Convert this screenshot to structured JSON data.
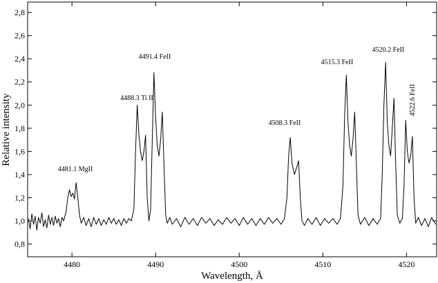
{
  "chart_data": {
    "type": "line",
    "xlabel": "Wavelength, Å",
    "ylabel": "Relative intensity",
    "color": "#000000",
    "xlim": [
      4474.7,
      4523.6
    ],
    "xticks": [
      4480,
      4490,
      4500,
      4510,
      4520
    ],
    "ylim": [
      0.69,
      2.89
    ],
    "yticks": [
      {
        "value": 0.8,
        "label": "0,8"
      },
      {
        "value": 1.0,
        "label": "1,0"
      },
      {
        "value": 1.2,
        "label": "1,2"
      },
      {
        "value": 1.4,
        "label": "1,4"
      },
      {
        "value": 1.6,
        "label": "1,6"
      },
      {
        "value": 1.8,
        "label": "1,8"
      },
      {
        "value": 2.0,
        "label": "2,0"
      },
      {
        "value": 2.2,
        "label": "2,2"
      },
      {
        "value": 2.4,
        "label": "2,4"
      },
      {
        "value": 2.6,
        "label": "2,6"
      },
      {
        "value": 2.8,
        "label": "2,8"
      }
    ],
    "annotations": [
      "4481.1 MgII",
      "4488.3 Ti II",
      "4491.4 FeII",
      "4508.3 FeII",
      "4515.3 FeII",
      "4520.2 FeII",
      "4522.6 FeII"
    ],
    "x": [
      4474.8,
      4475.0,
      4475.2,
      4475.4,
      4475.6,
      4475.8,
      4476.0,
      4476.2,
      4476.4,
      4476.6,
      4476.8,
      4477.0,
      4477.2,
      4477.4,
      4477.6,
      4477.8,
      4478.0,
      4478.2,
      4478.4,
      4478.6,
      4478.8,
      4479.0,
      4479.3,
      4479.5,
      4479.7,
      4479.9,
      4480.1,
      4480.3,
      4480.5,
      4480.7,
      4480.9,
      4481.1,
      4481.4,
      4481.7,
      4482.0,
      4482.3,
      4482.6,
      4482.9,
      4483.2,
      4483.5,
      4483.8,
      4484.1,
      4484.4,
      4484.7,
      4485.0,
      4485.3,
      4485.6,
      4485.9,
      4486.2,
      4486.5,
      4486.8,
      4487.1,
      4487.4,
      4487.6,
      4487.8,
      4488.0,
      4488.2,
      4488.4,
      4488.6,
      4488.8,
      4489.0,
      4489.2,
      4489.4,
      4489.6,
      4489.8,
      4490.0,
      4490.2,
      4490.4,
      4490.6,
      4490.8,
      4491.0,
      4491.2,
      4491.4,
      4491.7,
      4492.0,
      4492.5,
      4493.0,
      4493.5,
      4494.0,
      4494.5,
      4495.0,
      4495.5,
      4496.0,
      4496.5,
      4497.0,
      4497.5,
      4498.0,
      4498.5,
      4499.0,
      4499.5,
      4500.0,
      4500.5,
      4501.0,
      4501.5,
      4502.0,
      4502.5,
      4503.0,
      4503.5,
      4504.0,
      4504.5,
      4505.0,
      4505.4,
      4505.7,
      4505.9,
      4506.1,
      4506.3,
      4506.6,
      4506.9,
      4507.1,
      4507.3,
      4507.5,
      4507.8,
      4508.2,
      4508.7,
      4509.2,
      4509.7,
      4510.2,
      4510.7,
      4511.2,
      4511.7,
      4512.1,
      4512.4,
      4512.6,
      4512.8,
      4513.0,
      4513.2,
      4513.4,
      4513.6,
      4513.8,
      4514.0,
      4514.2,
      4514.5,
      4515.0,
      4515.5,
      4516.0,
      4516.5,
      4516.9,
      4517.1,
      4517.3,
      4517.5,
      4517.7,
      4517.9,
      4518.1,
      4518.3,
      4518.5,
      4518.7,
      4518.9,
      4519.2,
      4519.5,
      4519.7,
      4519.9,
      4520.1,
      4520.3,
      4520.5,
      4520.7,
      4520.9,
      4521.1,
      4521.4,
      4521.8,
      4522.2,
      4522.6,
      4523.0,
      4523.5
    ],
    "values": [
      1.02,
      0.93,
      1.06,
      0.97,
      1.04,
      0.92,
      1.03,
      0.98,
      1.07,
      0.95,
      1.01,
      0.94,
      1.05,
      0.97,
      1.03,
      0.96,
      1.04,
      0.98,
      1.02,
      0.95,
      1.03,
      1.0,
      1.08,
      1.2,
      1.27,
      1.21,
      1.24,
      1.19,
      1.33,
      1.2,
      1.05,
      0.98,
      1.03,
      0.96,
      1.02,
      0.95,
      1.03,
      0.97,
      1.02,
      0.96,
      1.01,
      0.97,
      1.03,
      0.98,
      1.02,
      0.97,
      1.01,
      0.96,
      1.02,
      0.98,
      1.02,
      1.0,
      1.1,
      1.6,
      2.0,
      1.75,
      1.6,
      1.52,
      1.6,
      1.74,
      1.2,
      1.0,
      1.1,
      1.7,
      2.28,
      1.9,
      1.65,
      1.56,
      1.7,
      1.94,
      1.5,
      1.05,
      0.98,
      1.03,
      0.97,
      1.02,
      0.95,
      1.03,
      0.97,
      1.02,
      0.96,
      1.03,
      0.98,
      1.02,
      0.96,
      1.01,
      0.97,
      1.03,
      0.98,
      1.02,
      0.96,
      1.03,
      0.97,
      1.02,
      0.96,
      1.02,
      0.97,
      1.03,
      0.98,
      1.02,
      0.97,
      1.02,
      1.2,
      1.55,
      1.72,
      1.5,
      1.4,
      1.47,
      1.52,
      1.2,
      1.0,
      0.96,
      1.02,
      0.97,
      1.03,
      0.96,
      1.02,
      0.98,
      1.02,
      0.97,
      1.02,
      1.3,
      1.9,
      2.26,
      1.85,
      1.65,
      1.56,
      1.7,
      1.94,
      1.5,
      1.05,
      0.97,
      1.03,
      0.96,
      1.02,
      0.97,
      1.02,
      1.4,
      2.0,
      2.37,
      1.85,
      1.65,
      1.56,
      1.8,
      2.06,
      1.5,
      1.05,
      0.98,
      1.02,
      1.3,
      1.87,
      1.6,
      1.5,
      1.56,
      1.73,
      1.2,
      0.98,
      1.03,
      0.96,
      1.02,
      0.95,
      1.03,
      0.97
    ]
  }
}
